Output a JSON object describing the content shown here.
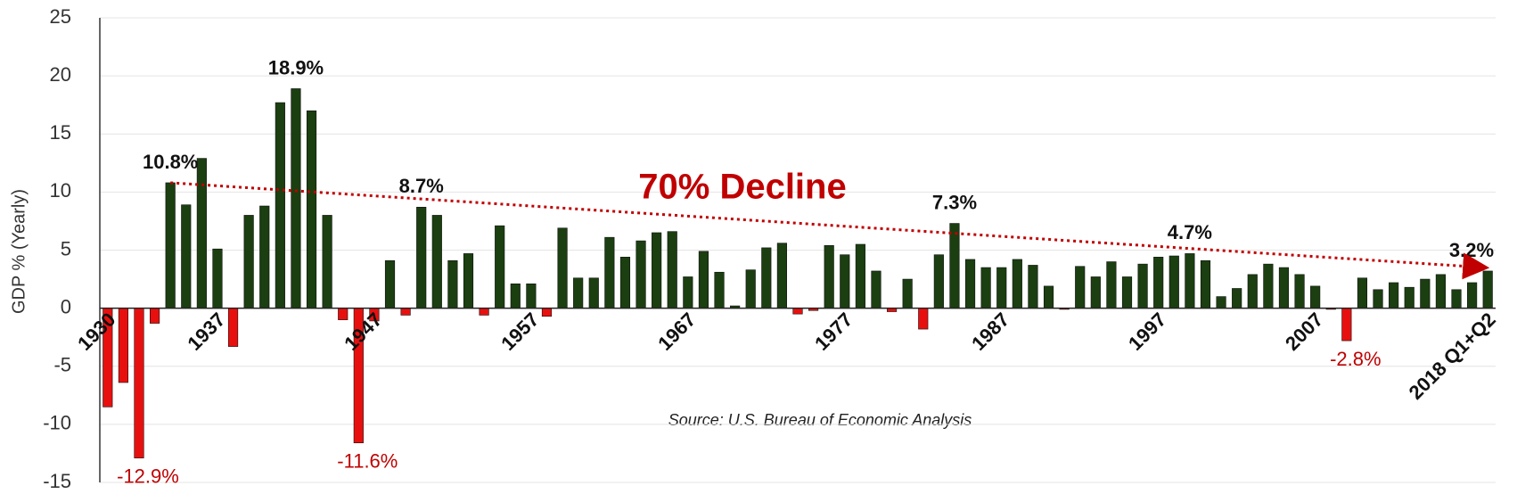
{
  "chart_data": {
    "type": "bar",
    "y_label": "GDP % (Yearly)",
    "annotations": {
      "trend": "70% Decline",
      "source": "Source: U.S. Bureau of Economic Analysis"
    },
    "categories": [
      "1930",
      null,
      null,
      null,
      null,
      null,
      null,
      "1937",
      null,
      null,
      null,
      null,
      null,
      null,
      null,
      null,
      null,
      "1947",
      null,
      null,
      null,
      null,
      null,
      null,
      null,
      null,
      null,
      "1957",
      null,
      null,
      null,
      null,
      null,
      null,
      null,
      null,
      null,
      "1967",
      null,
      null,
      null,
      null,
      null,
      null,
      null,
      null,
      null,
      "1977",
      null,
      null,
      null,
      null,
      null,
      null,
      null,
      null,
      null,
      "1987",
      null,
      null,
      null,
      null,
      null,
      null,
      null,
      null,
      null,
      "1997",
      null,
      null,
      null,
      null,
      null,
      null,
      null,
      null,
      null,
      "2007",
      null,
      null,
      null,
      null,
      null,
      null,
      null,
      null,
      null,
      null,
      "2018 Q1+Q2"
    ],
    "values": [
      -8.5,
      -6.4,
      -12.9,
      -1.3,
      10.8,
      8.9,
      12.9,
      5.1,
      -3.3,
      8.0,
      8.8,
      17.7,
      18.9,
      17.0,
      8.0,
      -1.0,
      -11.6,
      -1.1,
      4.1,
      -0.6,
      8.7,
      8.0,
      4.1,
      4.7,
      -0.6,
      7.1,
      2.1,
      2.1,
      -0.7,
      6.9,
      2.6,
      2.6,
      6.1,
      4.4,
      5.8,
      6.5,
      6.6,
      2.7,
      4.9,
      3.1,
      0.2,
      3.3,
      5.2,
      5.6,
      -0.5,
      -0.2,
      5.4,
      4.6,
      5.5,
      3.2,
      -0.3,
      2.5,
      -1.8,
      4.6,
      7.3,
      4.2,
      3.5,
      3.5,
      4.2,
      3.7,
      1.9,
      -0.1,
      3.6,
      2.7,
      4.0,
      2.7,
      3.8,
      4.4,
      4.5,
      4.7,
      4.1,
      1.0,
      1.7,
      2.9,
      3.8,
      3.5,
      2.9,
      1.9,
      -0.1,
      -2.8,
      2.6,
      1.6,
      2.2,
      1.8,
      2.5,
      2.9,
      1.6,
      2.2,
      3.2
    ],
    "value_labels": [
      null,
      null,
      "-12.9%",
      null,
      "10.8%",
      null,
      null,
      null,
      null,
      null,
      null,
      null,
      "18.9%",
      null,
      null,
      null,
      "-11.6%",
      null,
      null,
      null,
      "8.7%",
      null,
      null,
      null,
      null,
      null,
      null,
      null,
      null,
      null,
      null,
      null,
      null,
      null,
      null,
      null,
      null,
      null,
      null,
      null,
      null,
      null,
      null,
      null,
      null,
      null,
      null,
      null,
      null,
      null,
      null,
      null,
      null,
      null,
      "7.3%",
      null,
      null,
      null,
      null,
      null,
      null,
      null,
      null,
      null,
      null,
      null,
      null,
      null,
      null,
      "4.7%",
      null,
      null,
      null,
      null,
      null,
      null,
      null,
      null,
      null,
      "-2.8%",
      null,
      null,
      null,
      null,
      null,
      null,
      null,
      null,
      "3.2%"
    ],
    "positive_color": "#1b3f10",
    "negative_color": "#e8100f",
    "negative_label_color": "#c00000",
    "trend_color": "#c00000",
    "ylim": [
      -15,
      25
    ],
    "yticks": [
      -15,
      -10,
      -5,
      0,
      5,
      10,
      15,
      20,
      25
    ],
    "grid": true
  }
}
